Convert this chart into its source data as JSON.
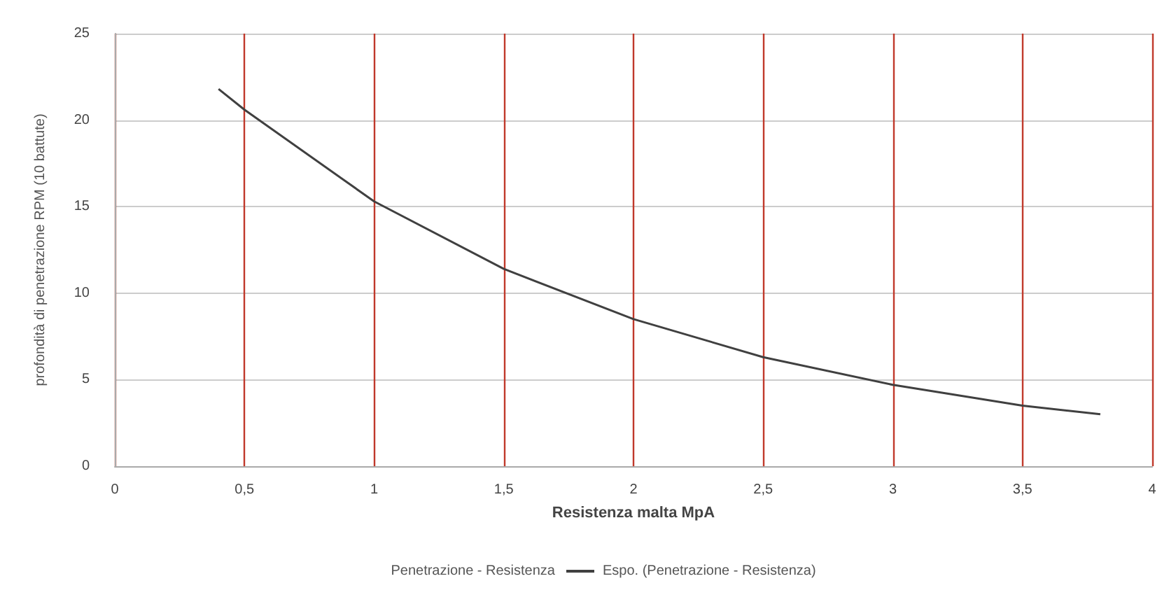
{
  "chart_data": {
    "type": "line",
    "xlabel": "Resistenza malta MpA",
    "ylabel": "profondità di penetrazione RPM (10 battute)",
    "x": [
      0.4,
      0.5,
      1,
      1.5,
      2,
      2.5,
      3,
      3.5,
      3.8
    ],
    "series": [
      {
        "name": "Penetrazione - Resistenza",
        "values": [
          null,
          null,
          null,
          null,
          null,
          null,
          null,
          null,
          null
        ]
      },
      {
        "name": "Espo. (Penetrazione - Resistenza)",
        "color": "#404040",
        "values": [
          21.8,
          20.6,
          15.3,
          11.4,
          8.5,
          6.3,
          4.7,
          3.5,
          3.0
        ]
      }
    ],
    "xlim": [
      0,
      4
    ],
    "xticks": [
      0,
      {
        "value": 0.5,
        "label": "0,5"
      },
      1,
      {
        "value": 1.5,
        "label": "1,5"
      },
      2,
      {
        "value": 2.5,
        "label": "2,5"
      },
      3,
      {
        "value": 3.5,
        "label": "3,5"
      },
      4
    ],
    "ylim": [
      0,
      25
    ],
    "yticks": [
      0,
      5,
      10,
      15,
      20,
      25
    ],
    "grid": true,
    "legend": "bottom",
    "marker": "none",
    "line_style": "solid"
  }
}
